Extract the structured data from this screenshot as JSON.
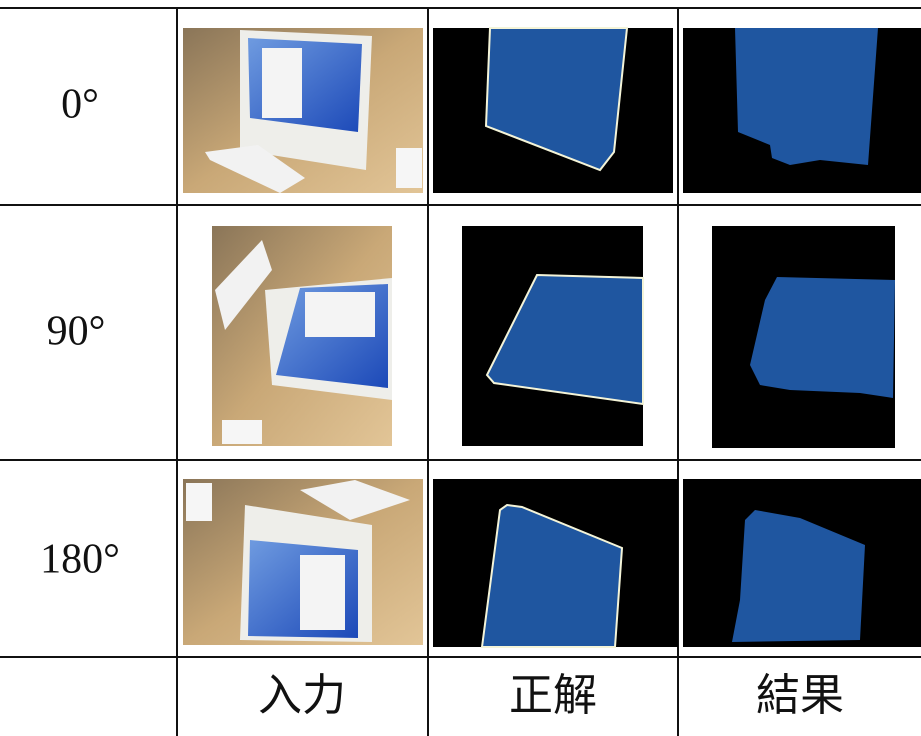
{
  "table": {
    "row_labels": [
      "0°",
      "90°",
      "180°"
    ],
    "column_labels": [
      "入力",
      "正解",
      "結果"
    ]
  }
}
